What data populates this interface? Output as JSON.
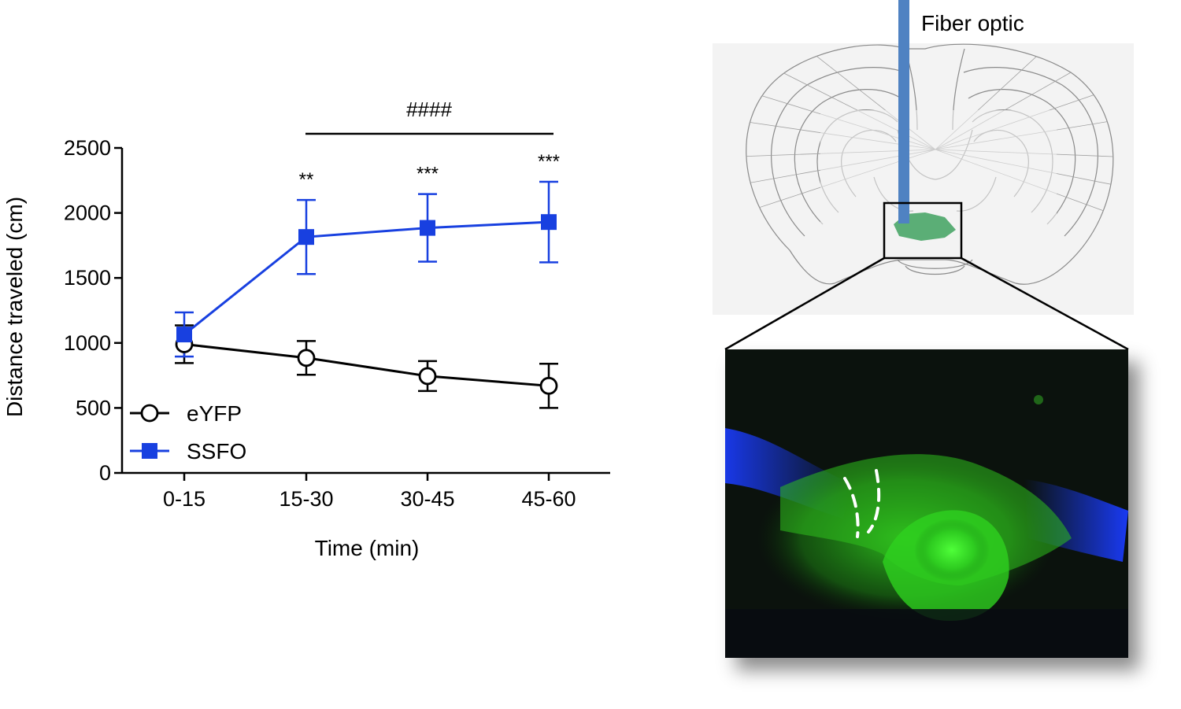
{
  "chart_data": {
    "type": "line",
    "categories": [
      "0-15",
      "15-30",
      "30-45",
      "45-60"
    ],
    "xlabel": "Time (min)",
    "ylabel": "Distance traveled (cm)",
    "ylim": [
      0,
      2500
    ],
    "yticks": [
      0,
      500,
      1000,
      1500,
      2000,
      2500
    ],
    "legend_position": "bottom-left",
    "grid": false,
    "series": [
      {
        "name": "eYFP",
        "marker": "open-circle",
        "color": "#000000",
        "values": [
          990,
          885,
          745,
          670
        ],
        "err": [
          145,
          130,
          115,
          170
        ]
      },
      {
        "name": "SSFO",
        "marker": "filled-square",
        "color": "#1840e0",
        "values": [
          1065,
          1815,
          1885,
          1930
        ],
        "err": [
          170,
          285,
          260,
          310
        ]
      }
    ],
    "annotations": {
      "significance": [
        "",
        "**",
        "***",
        "***"
      ],
      "bracket_label": "####",
      "bracket_span": [
        "15-30",
        "45-60"
      ]
    }
  },
  "figure": {
    "fiber_label": "Fiber optic",
    "fiber_color": "#4f82c2",
    "target_color": "#3fa15f",
    "fluorescence_green": "#39d02a",
    "fluorescence_blue": "#1a3cff"
  }
}
